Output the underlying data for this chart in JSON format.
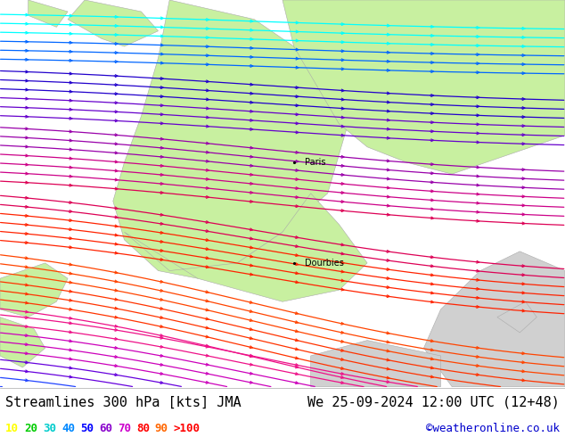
{
  "title_left": "Streamlines 300 hPa [kts] JMA",
  "title_right": "We 25-09-2024 12:00 UTC (12+48)",
  "credit": "©weatheronline.co.uk",
  "legend_values": [
    "10",
    "20",
    "30",
    "40",
    "50",
    "60",
    "70",
    "80",
    "90",
    ">100"
  ],
  "legend_colors": [
    "#ffff00",
    "#00cc00",
    "#00cccc",
    "#0088ff",
    "#0000ff",
    "#cc00cc",
    "#ff00ff",
    "#ff0000",
    "#ff6600",
    "#ff0000"
  ],
  "bg_green": "#c8f0a0",
  "bg_grey": "#d0d0d0",
  "bg_white": "#e8e8f0",
  "border_color": "#aaaaaa",
  "title_color": "#000000",
  "title_fontsize": 11,
  "credit_color": "#0000cc",
  "credit_fontsize": 9,
  "legend_fontsize": 9,
  "label_Paris": "Paris",
  "label_Dourbies": "Dourbies",
  "figsize": [
    6.34,
    4.9
  ],
  "dpi": 100,
  "streamline_colors": [
    "#00ffff",
    "#00ffff",
    "#00aaff",
    "#0055ff",
    "#0000ff",
    "#5500cc",
    "#8800aa",
    "#aa0088",
    "#cc0066",
    "#dd0044",
    "#ee2222",
    "#ff3300",
    "#ff5500",
    "#ff6600",
    "#ff4400",
    "#ff2200",
    "#ee1100",
    "#dd0088",
    "#cc00aa",
    "#bb00cc",
    "#aa00dd",
    "#9900ee",
    "#8800ff",
    "#7700ee",
    "#6600dd",
    "#5500cc",
    "#4400bb",
    "#3300aa",
    "#2200bb",
    "#1100cc",
    "#0000dd",
    "#0022ee",
    "#0044ff",
    "#0066ff",
    "#0088ff",
    "#00aaff",
    "#00ccff",
    "#00ddff",
    "#00eeff",
    "#00ffff"
  ],
  "n_streamlines": 38
}
